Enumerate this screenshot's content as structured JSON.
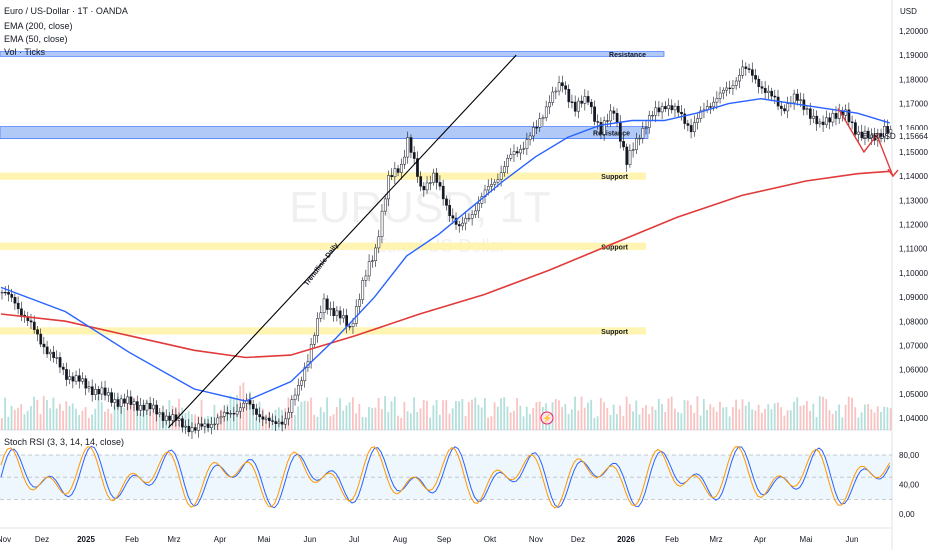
{
  "header": {
    "symbol_line": "Euro / US-Dollar · 1T · OANDA",
    "ema200": "EMA (200, close)",
    "ema50": "EMA (50, close)",
    "vol": "Vol · Ticks",
    "currency": "USD",
    "symbol_tag": "EURUSD",
    "watermark": "EURUSD, 1T",
    "watermark_sub": "Euro / US-Dollar"
  },
  "rsi_panel": {
    "title": "Stoch RSI (3, 3, 14, 14, close)"
  },
  "colors": {
    "bull": "#131722",
    "bear": "#131722",
    "ema200": "#e03a3a",
    "ema50": "#2962ff",
    "resistance": "#6f9cf0",
    "support": "#fff3a8",
    "trendline": "#000000",
    "arrow": "#e03a3a",
    "rsi_k": "#2962ff",
    "rsi_d": "#ff9800"
  },
  "chart_data": {
    "type": "candlestick",
    "price_axis": {
      "ticks": [
        "1,20000",
        "1,19000",
        "1,18000",
        "1,17000",
        "1,16000",
        "1,15664",
        "1,15000",
        "1,14000",
        "1,13000",
        "1,12000",
        "1,11000",
        "1,10000",
        "1,09000",
        "1,08000",
        "1,07000",
        "1,06000",
        "1,05000",
        "1,04000"
      ],
      "current_price": "1,15664",
      "range": [
        1.035,
        1.205
      ]
    },
    "time_axis": [
      "Nov",
      "Dez",
      "2025",
      "Feb",
      "Mrz",
      "Apr",
      "Mai",
      "Jun",
      "Jul",
      "Aug",
      "Sep",
      "Okt",
      "Nov",
      "Dez",
      "2026",
      "Feb",
      "Mrz",
      "Apr",
      "Mai",
      "Jun"
    ],
    "price_path": [
      [
        0,
        1.092
      ],
      [
        4,
        1.088
      ],
      [
        8,
        1.08
      ],
      [
        14,
        1.068
      ],
      [
        20,
        1.058
      ],
      [
        28,
        1.052
      ],
      [
        36,
        1.047
      ],
      [
        44,
        1.045
      ],
      [
        52,
        1.04
      ],
      [
        60,
        1.035
      ],
      [
        68,
        1.04
      ],
      [
        76,
        1.046
      ],
      [
        84,
        1.037
      ],
      [
        88,
        1.04
      ],
      [
        92,
        1.052
      ],
      [
        96,
        1.07
      ],
      [
        100,
        1.088
      ],
      [
        104,
        1.083
      ],
      [
        108,
        1.077
      ],
      [
        112,
        1.095
      ],
      [
        116,
        1.11
      ],
      [
        118,
        1.125
      ],
      [
        120,
        1.138
      ],
      [
        124,
        1.145
      ],
      [
        126,
        1.155
      ],
      [
        130,
        1.135
      ],
      [
        134,
        1.14
      ],
      [
        138,
        1.128
      ],
      [
        142,
        1.118
      ],
      [
        146,
        1.125
      ],
      [
        150,
        1.133
      ],
      [
        154,
        1.14
      ],
      [
        158,
        1.148
      ],
      [
        162,
        1.153
      ],
      [
        166,
        1.16
      ],
      [
        170,
        1.172
      ],
      [
        174,
        1.178
      ],
      [
        178,
        1.168
      ],
      [
        182,
        1.172
      ],
      [
        186,
        1.158
      ],
      [
        190,
        1.168
      ],
      [
        194,
        1.145
      ],
      [
        198,
        1.158
      ],
      [
        202,
        1.165
      ],
      [
        206,
        1.17
      ],
      [
        210,
        1.166
      ],
      [
        214,
        1.16
      ],
      [
        218,
        1.167
      ],
      [
        222,
        1.173
      ],
      [
        226,
        1.176
      ],
      [
        230,
        1.185
      ],
      [
        234,
        1.18
      ],
      [
        238,
        1.174
      ],
      [
        242,
        1.168
      ],
      [
        246,
        1.172
      ],
      [
        250,
        1.168
      ],
      [
        254,
        1.16
      ],
      [
        258,
        1.166
      ],
      [
        262,
        1.165
      ],
      [
        266,
        1.158
      ],
      [
        270,
        1.155
      ],
      [
        274,
        1.16
      ],
      [
        276,
        1.157
      ]
    ],
    "ema200": [
      [
        0,
        1.083
      ],
      [
        20,
        1.08
      ],
      [
        40,
        1.074
      ],
      [
        60,
        1.068
      ],
      [
        76,
        1.065
      ],
      [
        90,
        1.066
      ],
      [
        110,
        1.074
      ],
      [
        130,
        1.083
      ],
      [
        150,
        1.091
      ],
      [
        170,
        1.101
      ],
      [
        190,
        1.112
      ],
      [
        210,
        1.123
      ],
      [
        230,
        1.132
      ],
      [
        250,
        1.138
      ],
      [
        266,
        1.141
      ],
      [
        276,
        1.142
      ]
    ],
    "ema50": [
      [
        0,
        1.094
      ],
      [
        20,
        1.084
      ],
      [
        40,
        1.067
      ],
      [
        60,
        1.052
      ],
      [
        76,
        1.047
      ],
      [
        90,
        1.055
      ],
      [
        104,
        1.073
      ],
      [
        116,
        1.09
      ],
      [
        126,
        1.107
      ],
      [
        136,
        1.116
      ],
      [
        146,
        1.127
      ],
      [
        156,
        1.138
      ],
      [
        166,
        1.148
      ],
      [
        176,
        1.156
      ],
      [
        186,
        1.161
      ],
      [
        196,
        1.163
      ],
      [
        206,
        1.163
      ],
      [
        216,
        1.166
      ],
      [
        226,
        1.17
      ],
      [
        236,
        1.172
      ],
      [
        246,
        1.17
      ],
      [
        256,
        1.168
      ],
      [
        266,
        1.166
      ],
      [
        276,
        1.162
      ]
    ],
    "zones": [
      {
        "type": "resistance",
        "label": "Resistance",
        "y": [
          1.1895,
          1.1915
        ]
      },
      {
        "type": "resistance",
        "label": "Resistance",
        "y": [
          1.1555,
          1.1605
        ]
      },
      {
        "type": "support",
        "label": "Support",
        "y": [
          1.1385,
          1.1415
        ]
      },
      {
        "type": "support",
        "label": "Support",
        "y": [
          1.1095,
          1.1125
        ]
      },
      {
        "type": "support",
        "label": "Support",
        "y": [
          1.0745,
          1.0775
        ]
      }
    ],
    "trendline_label": "Trendlinie Daily",
    "stoch_rsi": {
      "ticks": [
        "80,00",
        "40,00",
        "0,00"
      ],
      "band": [
        20,
        80
      ]
    }
  }
}
